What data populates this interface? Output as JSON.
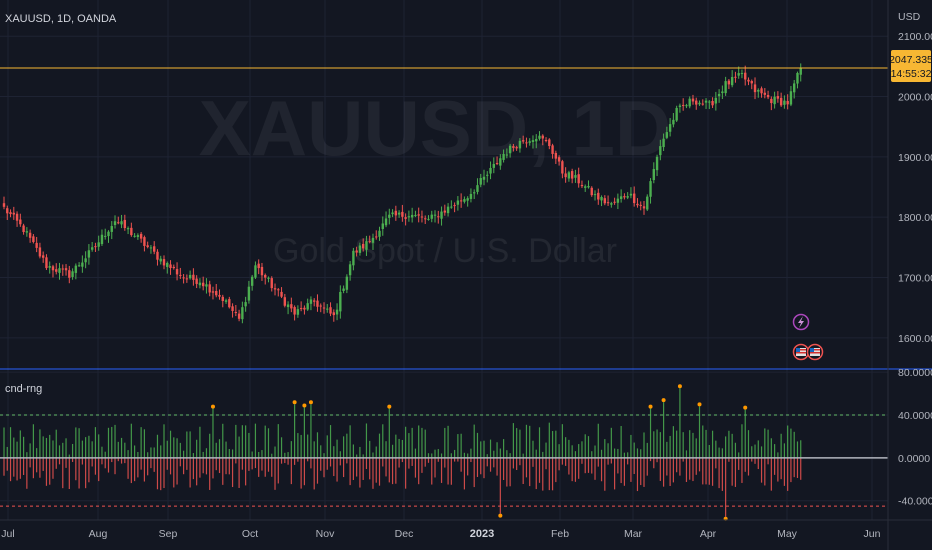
{
  "header": {
    "symbol_line": "XAUUSD, 1D, OANDA",
    "currency": "USD"
  },
  "watermark": {
    "symbol": "XAUUSD, 1D",
    "description": "Gold Spot / U.S. Dollar"
  },
  "price_badge": {
    "price": "2047.335",
    "countdown": "14:55:32",
    "color": "#f7b733"
  },
  "indicator": {
    "name": "cnd-rng"
  },
  "colors": {
    "background": "#131722",
    "grid": "#1e2333",
    "up": "#26a69a",
    "up_bright": "#4caf50",
    "down": "#ef5350",
    "last_price_line": "#f7b733",
    "pane_separator": "#2962ff",
    "upper_band": "#66bb6a",
    "lower_band": "#ef5350",
    "zero_line": "#b2b5be",
    "marker": "#ff9800"
  },
  "events": {
    "lightning_icon": "lightning-icon",
    "flag_icon": "us-flag-icon"
  },
  "chart_data": [
    {
      "type": "candlestick",
      "x_axis_labels": [
        "Jul",
        "Aug",
        "Sep",
        "Oct",
        "Nov",
        "Dec",
        "2023",
        "Feb",
        "Mar",
        "Apr",
        "May",
        "Jun"
      ],
      "y_ticks": [
        "1600.000",
        "1700.000",
        "1800.000",
        "1900.000",
        "2000.000",
        "2100.000"
      ],
      "ylim": [
        1550,
        2160
      ],
      "last_price": 2047.335,
      "path_points": [
        {
          "i": 0,
          "v": 1815
        },
        {
          "i": 6,
          "v": 1780
        },
        {
          "i": 13,
          "v": 1720
        },
        {
          "i": 20,
          "v": 1705
        },
        {
          "i": 27,
          "v": 1745
        },
        {
          "i": 34,
          "v": 1795
        },
        {
          "i": 40,
          "v": 1770
        },
        {
          "i": 48,
          "v": 1730
        },
        {
          "i": 55,
          "v": 1700
        },
        {
          "i": 60,
          "v": 1695
        },
        {
          "i": 67,
          "v": 1665
        },
        {
          "i": 72,
          "v": 1630
        },
        {
          "i": 77,
          "v": 1720
        },
        {
          "i": 83,
          "v": 1680
        },
        {
          "i": 89,
          "v": 1640
        },
        {
          "i": 95,
          "v": 1660
        },
        {
          "i": 101,
          "v": 1635
        },
        {
          "i": 107,
          "v": 1740
        },
        {
          "i": 112,
          "v": 1760
        },
        {
          "i": 118,
          "v": 1800
        },
        {
          "i": 124,
          "v": 1805
        },
        {
          "i": 130,
          "v": 1795
        },
        {
          "i": 136,
          "v": 1815
        },
        {
          "i": 142,
          "v": 1835
        },
        {
          "i": 148,
          "v": 1870
        },
        {
          "i": 153,
          "v": 1905
        },
        {
          "i": 158,
          "v": 1925
        },
        {
          "i": 163,
          "v": 1935
        },
        {
          "i": 167,
          "v": 1920
        },
        {
          "i": 171,
          "v": 1875
        },
        {
          "i": 176,
          "v": 1860
        },
        {
          "i": 181,
          "v": 1835
        },
        {
          "i": 186,
          "v": 1820
        },
        {
          "i": 191,
          "v": 1840
        },
        {
          "i": 196,
          "v": 1815
        },
        {
          "i": 201,
          "v": 1920
        },
        {
          "i": 206,
          "v": 1975
        },
        {
          "i": 211,
          "v": 1995
        },
        {
          "i": 216,
          "v": 1985
        },
        {
          "i": 221,
          "v": 2020
        },
        {
          "i": 226,
          "v": 2035
        },
        {
          "i": 230,
          "v": 2010
        },
        {
          "i": 235,
          "v": 1995
        },
        {
          "i": 240,
          "v": 1990
        },
        {
          "i": 244,
          "v": 2047
        }
      ],
      "candle_count": 245
    },
    {
      "type": "bar",
      "series_name": "cnd-rng",
      "y_ticks": [
        "80.0000",
        "40.0000",
        "0.0000",
        "-40.0000"
      ],
      "ylim": [
        -58,
        82
      ],
      "upper_band": 40,
      "lower_band": -45,
      "markers": [
        {
          "i": 64,
          "v": 46
        },
        {
          "i": 89,
          "v": 50
        },
        {
          "i": 92,
          "v": 47
        },
        {
          "i": 94,
          "v": 50
        },
        {
          "i": 118,
          "v": 46
        },
        {
          "i": 152,
          "v": -52
        },
        {
          "i": 198,
          "v": 46
        },
        {
          "i": 202,
          "v": 52
        },
        {
          "i": 207,
          "v": 65
        },
        {
          "i": 213,
          "v": 48
        },
        {
          "i": 221,
          "v": -55
        },
        {
          "i": 227,
          "v": 45
        }
      ]
    }
  ]
}
